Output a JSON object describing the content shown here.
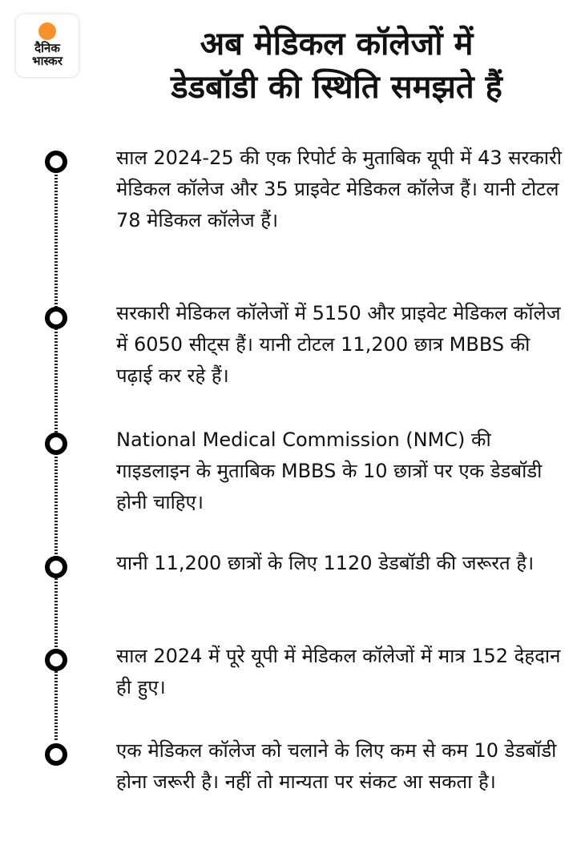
{
  "logo": {
    "line1": "दैनिक",
    "line2": "भास्कर",
    "accent": "#f7922b"
  },
  "title": {
    "line1": "अब मेडिकल कॉलेजों में",
    "line2": "डेडबॉडी की स्थिति समझते हैं"
  },
  "items": [
    "साल 2024-25 की एक रिपोर्ट के मुताबिक यूपी में 43 सरकारी मेडिकल कॉलेज और 35 प्राइवेट मेडिकल कॉलेज हैं। यानी टोटल 78 मेडिकल कॉलेज हैं।",
    "सरकारी मेडिकल कॉलेजों में 5150 और प्राइवेट मेडिकल कॉलेज में 6050 सीट्स हैं। यानी टोटल 11,200 छात्र MBBS की पढ़ाई कर रहे हैं।",
    "National Medical Commission (NMC) की गाइडलाइन के मुताबिक MBBS के 10 छात्रों पर एक डेडबॉडी होनी चाहिए।",
    "यानी 11,200 छात्रों के लिए 1120 डेडबॉडी की जरूरत है।",
    "साल 2024 में पूरे यूपी में मेडिकल कॉलेजों में मात्र 152 देहदान ही हुए।",
    "एक मेडिकल कॉलेज को चलाने के लिए कम से कम 10 डेडबॉडी होना जरूरी है। नहीं तो मान्यता पर संकट आ सकता है।"
  ]
}
